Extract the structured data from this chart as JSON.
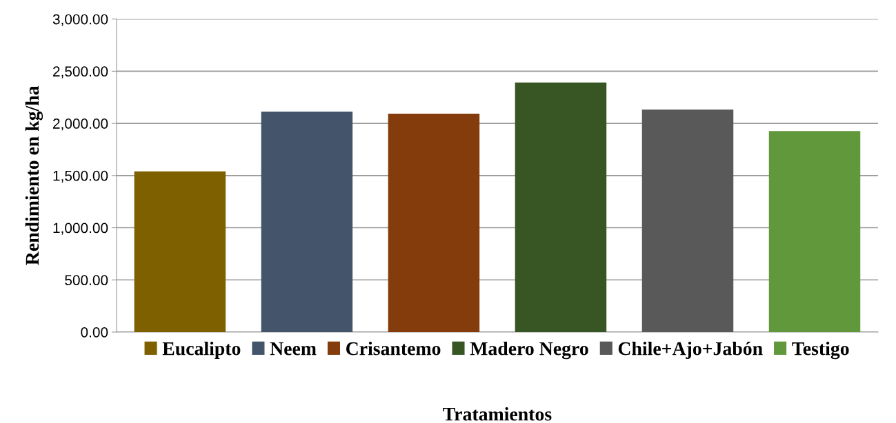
{
  "chart_data": {
    "type": "bar",
    "xlabel": "Tratamientos",
    "ylabel": "Rendimiento en kg/ha",
    "categories": [
      null,
      null,
      null,
      null,
      null,
      null
    ],
    "series": [
      {
        "name": "Eucalipto",
        "color": "#7f6000",
        "values": [
          1540,
          null,
          null,
          null,
          null,
          null
        ]
      },
      {
        "name": "Neem",
        "color": "#44546a",
        "values": [
          null,
          2113,
          null,
          null,
          null,
          null
        ]
      },
      {
        "name": "Crisantemo",
        "color": "#843c0c",
        "values": [
          null,
          null,
          2093,
          null,
          null,
          null
        ]
      },
      {
        "name": "Madero Negro",
        "color": "#375623",
        "values": [
          null,
          null,
          null,
          2391,
          null,
          null
        ]
      },
      {
        "name": "Chile+Ajo+Jabón",
        "color": "#595959",
        "values": [
          null,
          null,
          null,
          null,
          2132,
          null
        ]
      },
      {
        "name": "Testigo",
        "color": "#61983c",
        "values": [
          null,
          null,
          null,
          null,
          null,
          1927
        ]
      }
    ],
    "ylim": [
      0,
      3000
    ],
    "yticks": [
      {
        "value": 0,
        "label": "0.00"
      },
      {
        "value": 500,
        "label": "500.00"
      },
      {
        "value": 1000,
        "label": "1,000.00"
      },
      {
        "value": 1500,
        "label": "1,500.00"
      },
      {
        "value": 2000,
        "label": "2,000.00"
      },
      {
        "value": 2500,
        "label": "2,500.00"
      },
      {
        "value": 3000,
        "label": "3,000.00"
      }
    ],
    "grid": "y",
    "legend": "bottom"
  }
}
